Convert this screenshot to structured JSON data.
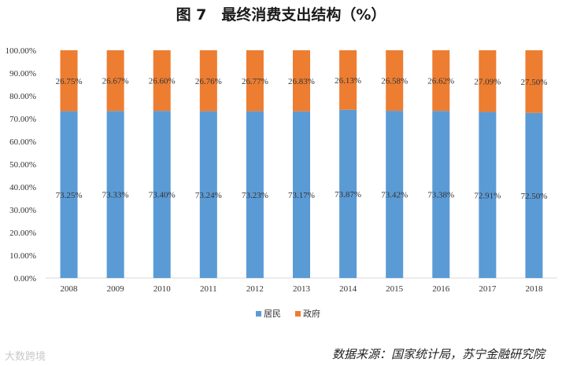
{
  "title": "图 7　最终消费支出结构（%）",
  "source": "数据来源：国家统计局，苏宁金融研究院",
  "watermark": "大数跨境",
  "chart_data": {
    "type": "bar",
    "stacked": true,
    "categories": [
      "2008",
      "2009",
      "2010",
      "2011",
      "2012",
      "2013",
      "2014",
      "2015",
      "2016",
      "2017",
      "2018"
    ],
    "series": [
      {
        "name": "居民",
        "color": "#5B9BD5",
        "values": [
          73.25,
          73.33,
          73.4,
          73.24,
          73.23,
          73.17,
          73.87,
          73.42,
          73.38,
          72.91,
          72.5
        ],
        "labels": [
          "73.25%",
          "73.33%",
          "73.40%",
          "73.24%",
          "73.23%",
          "73.17%",
          "73.87%",
          "73.42%",
          "73.38%",
          "72.91%",
          "72.50%"
        ]
      },
      {
        "name": "政府",
        "color": "#ED7D31",
        "values": [
          26.75,
          26.67,
          26.6,
          26.76,
          26.77,
          26.83,
          26.13,
          26.58,
          26.62,
          27.09,
          27.5
        ],
        "labels": [
          "26.75%",
          "26.67%",
          "26.60%",
          "26.76%",
          "26.77%",
          "26.83%",
          "26.13%",
          "26.58%",
          "26.62%",
          "27.09%",
          "27.50%"
        ]
      }
    ],
    "yticks": [
      "0.00%",
      "10.00%",
      "20.00%",
      "30.00%",
      "40.00%",
      "50.00%",
      "60.00%",
      "70.00%",
      "80.00%",
      "90.00%",
      "100.00%"
    ],
    "ylim": [
      0,
      100
    ],
    "grid": false,
    "legend": "bottom"
  }
}
